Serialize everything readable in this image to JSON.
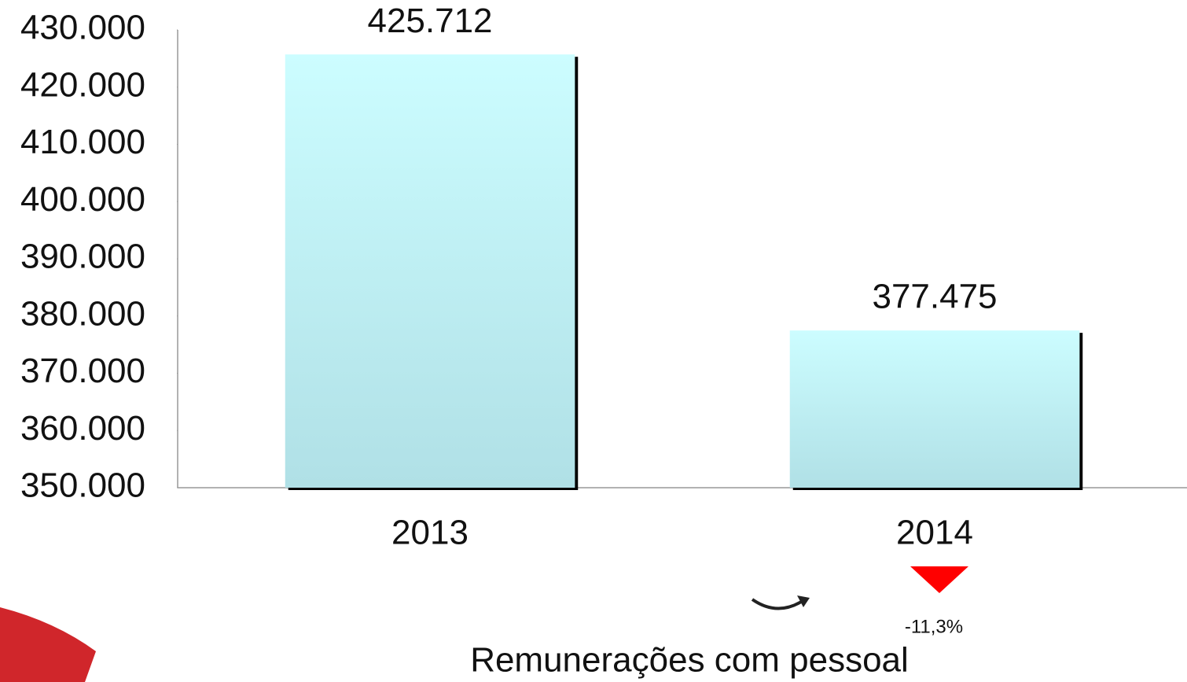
{
  "chart_data": {
    "type": "bar",
    "title": "Remunerações com pessoal",
    "categories": [
      "2013",
      "2014"
    ],
    "values": [
      425712,
      377475
    ],
    "value_labels": [
      "425.712",
      "377.475"
    ],
    "color": "#ccfdff",
    "ylim": [
      350000,
      430000
    ],
    "yticks": [
      {
        "value": 350000,
        "label": "350.000"
      },
      {
        "value": 360000,
        "label": "360.000"
      },
      {
        "value": 370000,
        "label": "370.000"
      },
      {
        "value": 380000,
        "label": "380.000"
      },
      {
        "value": 390000,
        "label": "390.000"
      },
      {
        "value": 400000,
        "label": "400.000"
      },
      {
        "value": 410000,
        "label": "410.000"
      },
      {
        "value": 420000,
        "label": "420.000"
      },
      {
        "value": 430000,
        "label": "430.000"
      }
    ],
    "grid": false,
    "annotations": [
      {
        "text": "-11,3%"
      }
    ]
  }
}
